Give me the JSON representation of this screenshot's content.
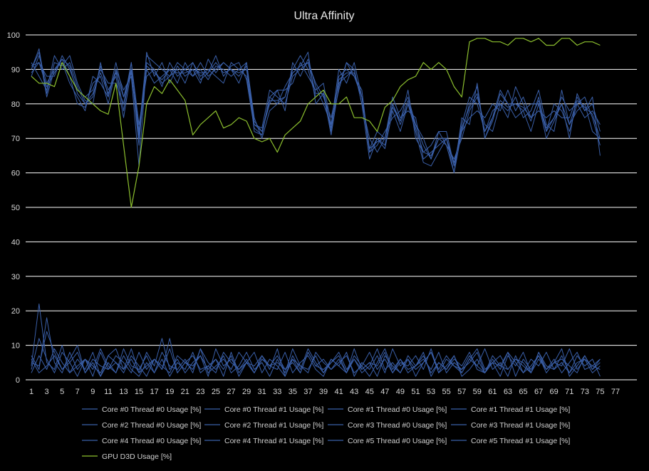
{
  "chart_data": {
    "type": "line",
    "title": "Ultra Affinity",
    "xlabel": "",
    "ylabel": "",
    "ylim": [
      0,
      100
    ],
    "yticks": [
      0,
      10,
      20,
      30,
      40,
      50,
      60,
      70,
      80,
      90,
      100
    ],
    "x_tick_labels": [
      "1",
      "3",
      "5",
      "7",
      "9",
      "11",
      "13",
      "15",
      "17",
      "19",
      "21",
      "23",
      "25",
      "27",
      "29",
      "31",
      "33",
      "35",
      "37",
      "39",
      "41",
      "43",
      "45",
      "47",
      "49",
      "51",
      "53",
      "55",
      "57",
      "59",
      "61",
      "63",
      "65",
      "67",
      "69",
      "71",
      "73",
      "75",
      "77"
    ],
    "xlim": [
      1,
      77
    ],
    "grid": "horizontal",
    "legend_position": "bottom",
    "colors": {
      "background": "#000000",
      "grid": "#ffffff",
      "cpu_series": "#3a5fa8",
      "gpu_series": "#8cbf2e",
      "text": "#d8d8d8"
    },
    "series": [
      {
        "name": "Core #0 Thread #0 Usage [%]",
        "color": "#3a5fa8",
        "values": [
          90,
          95,
          82,
          90,
          93,
          88,
          80,
          79,
          86,
          88,
          80,
          90,
          84,
          88,
          62,
          92,
          90,
          85,
          92,
          88,
          90,
          92,
          87,
          89,
          94,
          88,
          91,
          92,
          87,
          73,
          71,
          82,
          80,
          85,
          89,
          91,
          95,
          80,
          83,
          71,
          85,
          92,
          90,
          80,
          64,
          70,
          67,
          78,
          72,
          80,
          72,
          63,
          62,
          66,
          70,
          60,
          72,
          80,
          85,
          70,
          75,
          83,
          80,
          76,
          78,
          72,
          80,
          70,
          75,
          80,
          70,
          83,
          78,
          82,
          65
        ]
      },
      {
        "name": "Core #0 Thread #1 Usage [%]",
        "color": "#3a5fa8",
        "values": [
          3,
          12,
          6,
          2,
          8,
          5,
          1,
          6,
          3,
          9,
          4,
          2,
          7,
          3,
          1,
          5,
          2,
          8,
          4,
          3,
          6,
          2,
          9,
          5,
          3,
          7,
          2,
          4,
          8,
          3,
          5,
          1,
          6,
          2,
          9,
          4,
          3,
          7,
          2,
          5,
          8,
          3,
          6,
          2,
          4,
          9,
          3,
          5,
          2,
          7,
          4,
          6,
          3,
          8,
          2,
          5,
          3,
          7,
          4,
          2,
          6,
          3,
          8,
          5,
          2,
          4,
          7,
          3,
          6,
          2,
          5,
          8,
          3,
          4,
          6
        ]
      },
      {
        "name": "Core #1 Thread #0 Usage [%]",
        "color": "#3a5fa8",
        "values": [
          92,
          88,
          84,
          94,
          90,
          92,
          85,
          80,
          82,
          91,
          84,
          88,
          76,
          90,
          68,
          95,
          88,
          92,
          86,
          91,
          88,
          90,
          86,
          93,
          89,
          92,
          90,
          88,
          91,
          75,
          72,
          80,
          84,
          78,
          92,
          88,
          93,
          85,
          80,
          74,
          90,
          86,
          92,
          82,
          67,
          72,
          70,
          80,
          75,
          84,
          70,
          66,
          68,
          72,
          72,
          62,
          74,
          82,
          80,
          72,
          78,
          80,
          76,
          85,
          80,
          75,
          82,
          72,
          80,
          78,
          72,
          80,
          82,
          76,
          68
        ]
      },
      {
        "name": "Core #1 Thread #1 Usage [%]",
        "color": "#3a5fa8",
        "values": [
          5,
          4,
          14,
          8,
          3,
          6,
          10,
          2,
          5,
          1,
          7,
          9,
          3,
          6,
          2,
          8,
          4,
          12,
          3,
          6,
          2,
          5,
          7,
          1,
          9,
          4,
          6,
          3,
          5,
          8,
          2,
          6,
          4,
          1,
          7,
          3,
          9,
          5,
          2,
          6,
          4,
          8,
          1,
          5,
          3,
          7,
          2,
          9,
          4,
          6,
          1,
          5,
          8,
          3,
          7,
          4,
          2,
          6,
          9,
          3,
          5,
          1,
          7,
          4,
          8,
          2,
          6,
          3,
          5,
          9,
          1,
          4,
          7,
          3,
          6
        ]
      },
      {
        "name": "Core #2 Thread #0 Usage [%]",
        "color": "#3a5fa8",
        "values": [
          88,
          94,
          86,
          90,
          92,
          86,
          82,
          78,
          88,
          86,
          82,
          92,
          82,
          90,
          70,
          90,
          86,
          88,
          90,
          86,
          92,
          88,
          90,
          87,
          91,
          90,
          88,
          90,
          92,
          76,
          70,
          78,
          80,
          82,
          90,
          94,
          90,
          82,
          84,
          72,
          88,
          90,
          88,
          84,
          66,
          68,
          72,
          76,
          78,
          82,
          74,
          68,
          64,
          70,
          68,
          64,
          70,
          78,
          82,
          74,
          72,
          80,
          78,
          82,
          76,
          78,
          84,
          74,
          72,
          84,
          74,
          78,
          80,
          72,
          70
        ]
      },
      {
        "name": "Core #2 Thread #1 Usage [%]",
        "color": "#3a5fa8",
        "values": [
          2,
          7,
          3,
          9,
          5,
          2,
          4,
          6,
          1,
          8,
          3,
          5,
          2,
          7,
          4,
          1,
          6,
          3,
          9,
          2,
          5,
          4,
          7,
          3,
          6,
          1,
          8,
          2,
          5,
          4,
          7,
          3,
          9,
          1,
          6,
          4,
          2,
          8,
          5,
          3,
          6,
          2,
          7,
          4,
          1,
          5,
          9,
          3,
          6,
          2,
          4,
          8,
          1,
          5,
          3,
          7,
          2,
          6,
          4,
          9,
          3,
          5,
          1,
          7,
          2,
          6,
          4,
          8,
          3,
          5,
          2,
          7,
          4,
          6,
          1
        ]
      },
      {
        "name": "Core #3 Thread #0 Usage [%]",
        "color": "#3a5fa8",
        "values": [
          91,
          92,
          88,
          88,
          94,
          90,
          84,
          82,
          84,
          90,
          86,
          86,
          80,
          92,
          74,
          88,
          90,
          86,
          88,
          90,
          86,
          92,
          88,
          90,
          88,
          86,
          92,
          90,
          88,
          74,
          73,
          84,
          82,
          80,
          88,
          90,
          92,
          86,
          82,
          76,
          86,
          88,
          90,
          80,
          70,
          66,
          70,
          82,
          76,
          78,
          76,
          64,
          66,
          68,
          70,
          63,
          72,
          76,
          78,
          76,
          80,
          78,
          84,
          78,
          82,
          76,
          78,
          76,
          78,
          76,
          76,
          82,
          78,
          80,
          72
        ]
      },
      {
        "name": "Core #3 Thread #1 Usage [%]",
        "color": "#3a5fa8",
        "values": [
          4,
          22,
          5,
          3,
          10,
          2,
          6,
          3,
          8,
          1,
          5,
          2,
          9,
          4,
          3,
          7,
          2,
          6,
          1,
          5,
          3,
          8,
          2,
          4,
          6,
          3,
          7,
          1,
          5,
          2,
          6,
          4,
          3,
          8,
          2,
          5,
          7,
          3,
          1,
          6,
          4,
          2,
          9,
          3,
          5,
          1,
          7,
          4,
          2,
          6,
          3,
          5,
          8,
          2,
          4,
          7,
          1,
          3,
          6,
          2,
          5,
          4,
          8,
          1,
          6,
          3,
          7,
          2,
          5,
          4,
          9,
          3,
          6,
          2,
          4
        ]
      },
      {
        "name": "Core #4 Thread #0 Usage [%]",
        "color": "#3a5fa8",
        "values": [
          90,
          96,
          83,
          92,
          91,
          94,
          86,
          81,
          80,
          92,
          82,
          90,
          78,
          92,
          72,
          94,
          92,
          90,
          88,
          92,
          90,
          88,
          92,
          88,
          90,
          92,
          90,
          86,
          92,
          72,
          71,
          82,
          84,
          84,
          86,
          92,
          88,
          84,
          86,
          74,
          84,
          92,
          88,
          82,
          66,
          70,
          68,
          80,
          74,
          80,
          74,
          70,
          64,
          72,
          68,
          60,
          76,
          74,
          86,
          70,
          76,
          84,
          80,
          80,
          78,
          80,
          80,
          72,
          76,
          82,
          78,
          80,
          76,
          78,
          74
        ]
      },
      {
        "name": "Core #4 Thread #1 Usage [%]",
        "color": "#3a5fa8",
        "values": [
          7,
          3,
          18,
          5,
          2,
          8,
          3,
          6,
          4,
          2,
          7,
          5,
          3,
          9,
          2,
          4,
          6,
          3,
          12,
          2,
          5,
          7,
          3,
          4,
          2,
          8,
          5,
          3,
          6,
          2,
          7,
          4,
          5,
          3,
          6,
          2,
          8,
          4,
          3,
          5,
          7,
          2,
          6,
          3,
          5,
          4,
          8,
          2,
          6,
          3,
          4,
          7,
          2,
          5,
          3,
          6,
          4,
          8,
          3,
          2,
          5,
          7,
          3,
          6,
          4,
          2,
          8,
          3,
          5,
          6,
          4,
          2,
          7,
          3,
          5
        ]
      },
      {
        "name": "Core #5 Thread #0 Usage [%]",
        "color": "#3a5fa8",
        "values": [
          89,
          92,
          85,
          89,
          93,
          91,
          83,
          80,
          83,
          89,
          83,
          89,
          82,
          89,
          71,
          91,
          89,
          87,
          90,
          89,
          89,
          90,
          89,
          89,
          92,
          89,
          90,
          89,
          90,
          74,
          72,
          81,
          81,
          82,
          89,
          91,
          92,
          83,
          83,
          73,
          87,
          89,
          89,
          82,
          67,
          69,
          70,
          79,
          75,
          81,
          73,
          66,
          65,
          70,
          70,
          62,
          73,
          79,
          83,
          72,
          76,
          81,
          79,
          80,
          79,
          76,
          81,
          73,
          76,
          80,
          74,
          81,
          79,
          77,
          70
        ]
      },
      {
        "name": "Core #5 Thread #1 Usage [%]",
        "color": "#3a5fa8",
        "values": [
          6,
          2,
          4,
          7,
          3,
          5,
          8,
          2,
          6,
          4,
          3,
          7,
          5,
          2,
          8,
          3,
          6,
          4,
          2,
          7,
          5,
          3,
          9,
          2,
          4,
          6,
          3,
          8,
          5,
          2,
          6,
          4,
          7,
          3,
          5,
          2,
          8,
          4,
          6,
          3,
          5,
          7,
          2,
          4,
          8,
          3,
          6,
          2,
          5,
          4,
          7,
          3,
          9,
          2,
          6,
          4,
          3,
          5,
          8,
          2,
          7,
          4,
          3,
          6,
          5,
          2,
          8,
          4,
          3,
          7,
          2,
          5,
          6,
          4,
          3
        ]
      },
      {
        "name": "GPU D3D Usage [%]",
        "color": "#8cbf2e",
        "values": [
          88,
          86,
          86,
          85,
          92,
          88,
          84,
          82,
          80,
          78,
          77,
          86,
          68,
          50,
          62,
          80,
          85,
          83,
          87,
          84,
          81,
          71,
          74,
          76,
          78,
          73,
          74,
          76,
          75,
          70,
          69,
          70,
          66,
          71,
          73,
          75,
          80,
          82,
          84,
          80,
          80,
          82,
          76,
          76,
          75,
          72,
          79,
          81,
          85,
          87,
          88,
          92,
          90,
          92,
          90,
          85,
          82,
          98,
          99,
          99,
          98,
          98,
          97,
          99,
          99,
          98,
          99,
          97,
          97,
          99,
          99,
          97,
          98,
          98,
          97
        ]
      }
    ],
    "legend": [
      "Core #0 Thread #0 Usage [%]",
      "Core #0 Thread #1 Usage [%]",
      "Core #1 Thread #0 Usage [%]",
      "Core #1 Thread #1 Usage [%]",
      "Core #2 Thread #0 Usage [%]",
      "Core #2 Thread #1 Usage [%]",
      "Core #3 Thread #0 Usage [%]",
      "Core #3 Thread #1 Usage [%]",
      "Core #4 Thread #0 Usage [%]",
      "Core #4 Thread #1 Usage [%]",
      "Core #5 Thread #0 Usage [%]",
      "Core #5 Thread #1 Usage [%]",
      "GPU D3D Usage [%]"
    ]
  }
}
